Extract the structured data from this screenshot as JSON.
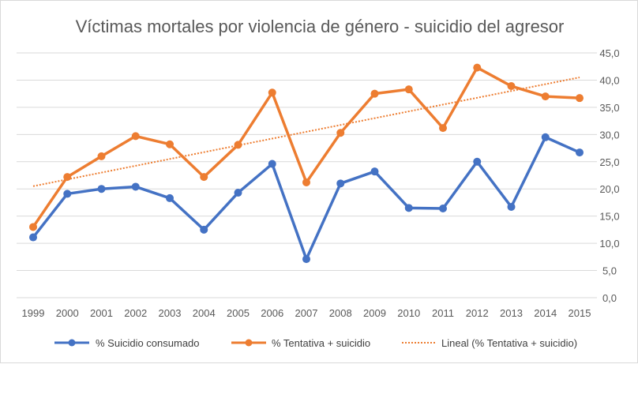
{
  "chart_data": {
    "type": "line",
    "title": "Víctimas mortales por violencia de género - suicidio del agresor",
    "categories": [
      "1999",
      "2000",
      "2001",
      "2002",
      "2003",
      "2004",
      "2005",
      "2006",
      "2007",
      "2008",
      "2009",
      "2010",
      "2011",
      "2012",
      "2013",
      "2014",
      "2015"
    ],
    "series": [
      {
        "name": "% Suicidio consumado",
        "color": "#4472c4",
        "values": [
          11.1,
          19.1,
          20.0,
          20.4,
          18.3,
          12.5,
          19.3,
          24.6,
          7.1,
          21.0,
          23.2,
          16.5,
          16.4,
          25.0,
          16.7,
          29.5,
          26.7
        ]
      },
      {
        "name": "% Tentativa + suicidio",
        "color": "#ed7d31",
        "values": [
          13.0,
          22.2,
          26.0,
          29.7,
          28.2,
          22.2,
          28.1,
          37.7,
          21.2,
          30.3,
          37.5,
          38.3,
          31.2,
          42.3,
          38.9,
          37.0,
          36.7
        ]
      }
    ],
    "trendline": {
      "name": "Lineal (% Tentativa + suicidio)",
      "color": "#ed7d31",
      "start_value": 20.5,
      "end_value": 40.5
    },
    "yticks": [
      "0,0",
      "5,0",
      "10,0",
      "15,0",
      "20,0",
      "25,0",
      "30,0",
      "35,0",
      "40,0",
      "45,0"
    ],
    "ylim": [
      0,
      45
    ],
    "grid": true,
    "legend_position": "bottom"
  }
}
